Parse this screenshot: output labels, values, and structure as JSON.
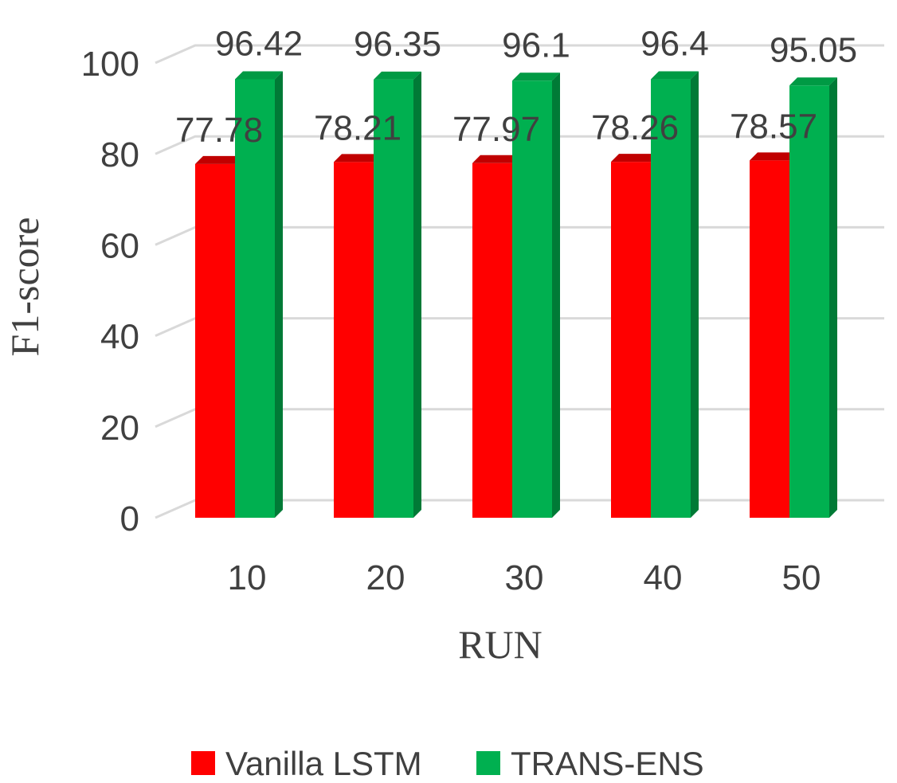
{
  "chart_data": {
    "type": "bar",
    "categories": [
      "10",
      "20",
      "30",
      "40",
      "50"
    ],
    "series": [
      {
        "name": "Vanilla LSTM",
        "values": [
          77.78,
          78.21,
          77.97,
          78.26,
          78.57
        ],
        "color": "#ff0000",
        "top_color": "#c00000",
        "side_color": "#a80000"
      },
      {
        "name": "TRANS-ENS",
        "values": [
          96.42,
          96.35,
          96.1,
          96.4,
          95.05
        ],
        "color": "#00b050",
        "top_color": "#009a44",
        "side_color": "#007a36"
      }
    ],
    "xlabel": "RUN",
    "ylabel": "F1-score",
    "ylim": [
      0,
      100
    ],
    "yticks": [
      "0",
      "20",
      "40",
      "60",
      "80",
      "100"
    ],
    "value_labels": {
      "Vanilla LSTM": [
        "77.78",
        "78.21",
        "77.97",
        "78.26",
        "78.57"
      ],
      "TRANS-ENS": [
        "96.42",
        "96.35",
        "96.1",
        "96.4",
        "95.05"
      ]
    },
    "grid": true,
    "legend_position": "bottom",
    "gridline_color": "#d9d9d9",
    "text_color": "#404040"
  }
}
